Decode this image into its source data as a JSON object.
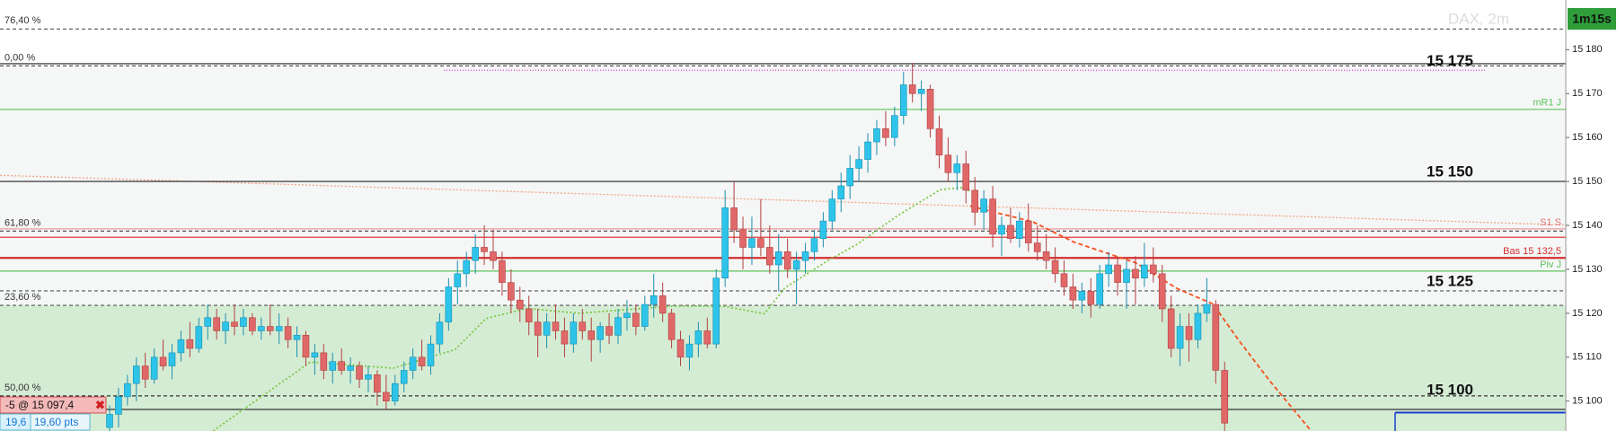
{
  "chart_data": {
    "type": "candlestick",
    "title": "DAX, 2m",
    "timer": "1m15s",
    "ylim": [
      15093.2,
      15191.3
    ],
    "yticks": [
      {
        "value": 15100,
        "label": "15 100"
      },
      {
        "value": 15110,
        "label": "15 110"
      },
      {
        "value": 15120,
        "label": "15 120"
      },
      {
        "value": 15130,
        "label": "15 130"
      },
      {
        "value": 15140,
        "label": "15 140"
      },
      {
        "value": 15150,
        "label": "15 150"
      },
      {
        "value": 15160,
        "label": "15 160"
      },
      {
        "value": 15170,
        "label": "15 170"
      },
      {
        "value": 15180,
        "label": "15 180"
      }
    ],
    "up_color": "#2ec4ea",
    "down_color": "#e06868",
    "zones": [
      {
        "from": 15176.3,
        "to": 15121.8,
        "color": "#f5f6f6"
      },
      {
        "from": 15121.8,
        "to": 15093.2,
        "color": "#d5ecd4"
      }
    ],
    "levels": [
      {
        "price": 15184.7,
        "label": "76,40 %",
        "color": "#555555",
        "style": "dashed",
        "side": "left"
      },
      {
        "price": 15176.3,
        "label": "0,00 %",
        "color": "#555555",
        "style": "dashed",
        "side": "left"
      },
      {
        "price": 15176.8,
        "color": "#222222",
        "style": "solid"
      },
      {
        "price": 15175.3,
        "label": "15 175",
        "color": "#e040e0",
        "style": "segment",
        "side": "big"
      },
      {
        "price": 15166.4,
        "label": "mR1 J",
        "color": "#5cc45c",
        "style": "solid",
        "side": "right"
      },
      {
        "price": 15150,
        "label": "15 150",
        "color": "#222222",
        "style": "solid",
        "side": "big"
      },
      {
        "price": 15139.2,
        "label": "S1 S",
        "color": "#e57373",
        "style": "thin",
        "side": "right"
      },
      {
        "price": 15138.7,
        "label": "61,80 %",
        "color": "#555555",
        "style": "dashed",
        "side": "left"
      },
      {
        "price": 15137.3,
        "color": "#e53935",
        "style": "solid"
      },
      {
        "price": 15132.6,
        "label": "Bas 15 132,5",
        "color": "#d32f2f",
        "style": "thick",
        "side": "right"
      },
      {
        "price": 15129.6,
        "label": "Piv J",
        "color": "#5cc45c",
        "style": "solid",
        "side": "right"
      },
      {
        "price": 15125.1,
        "label": "15 125",
        "color": "#555555",
        "style": "dashed",
        "side": "big"
      },
      {
        "price": 15121.8,
        "label": "23,60 %",
        "color": "#555555",
        "style": "dashed",
        "side": "left"
      },
      {
        "price": 15101.2,
        "label": "50,00 %",
        "color": "#333333",
        "style": "dashed",
        "side": "left"
      },
      {
        "price": 15100.4,
        "label": "15 100",
        "color": "#333333",
        "style": "none",
        "side": "big"
      },
      {
        "price": 15098.1,
        "color": "#333333",
        "style": "solid"
      }
    ],
    "trendline": {
      "color": "#f4a582",
      "values": [
        15151.4,
        15140.1
      ]
    },
    "averages": [
      {
        "color": "#7ac943",
        "style": "dotted",
        "x": [
          11.6,
          22.5,
          31.8,
          38.7,
          42.2,
          46.8,
          52.6,
          63,
          68.8,
          73.4,
          75.7,
          80.3,
          83.8,
          88.4,
          93.1,
          95.4,
          97.1
        ],
        "values": [
          15093.2,
          15108.9,
          15107.5,
          15111.7,
          15118.8,
          15121.1,
          15120,
          15121.6,
          15121.6,
          15119.9,
          15125.8,
          15131.7,
          15135.7,
          15142.3,
          15148.1,
          15148.6,
          15147.4
        ]
      },
      {
        "color": "#f4511e",
        "style": "dashed",
        "x": [
          96.5,
          103.5,
          108.1,
          115,
          119.7,
          123.7,
          126.6,
          130.1,
          134.7
        ],
        "values": [
          15144.4,
          15140.8,
          15136.2,
          15131.5,
          15125.6,
          15122.1,
          15113.8,
          15104.5,
          15093.2
        ]
      }
    ],
    "position": {
      "label": "-5 @ 15 097,4",
      "price": 15097.4,
      "gain": "19,6",
      "points": "19,60 pts"
    },
    "candles": [
      [
        15094,
        15099,
        15093,
        15097
      ],
      [
        15097,
        15103,
        15094,
        15101
      ],
      [
        15101,
        15106,
        15099,
        15104
      ],
      [
        15104,
        15110,
        15100,
        15108
      ],
      [
        15108,
        15111,
        15103,
        15105
      ],
      [
        15105,
        15112,
        15104,
        15110
      ],
      [
        15110,
        15114,
        15107,
        15108
      ],
      [
        15108,
        15113,
        15105,
        15111
      ],
      [
        15111,
        15116,
        15109,
        15114
      ],
      [
        15114,
        15118,
        15110,
        15112
      ],
      [
        15112,
        15119,
        15111,
        15117
      ],
      [
        15117,
        15122,
        15114,
        15119
      ],
      [
        15119,
        15121,
        15114,
        15116
      ],
      [
        15116,
        15120,
        15113,
        15118
      ],
      [
        15118,
        15122,
        15115,
        15117
      ],
      [
        15117,
        15121,
        15115,
        15119
      ],
      [
        15119,
        15120,
        15115,
        15116
      ],
      [
        15116,
        15119,
        15114,
        15117
      ],
      [
        15117,
        15122,
        15115,
        15116
      ],
      [
        15116,
        15120,
        15113,
        15117
      ],
      [
        15117,
        15119,
        15112,
        15114
      ],
      [
        15114,
        15117,
        15110,
        15115
      ],
      [
        15115,
        15116,
        15108,
        15110
      ],
      [
        15110,
        15113,
        15106,
        15111
      ],
      [
        15111,
        15113,
        15105,
        15107
      ],
      [
        15107,
        15111,
        15104,
        15109
      ],
      [
        15109,
        15112,
        15106,
        15107
      ],
      [
        15107,
        15110,
        15104,
        15108
      ],
      [
        15108,
        15109,
        15103,
        15105
      ],
      [
        15105,
        15108,
        15102,
        15106
      ],
      [
        15106,
        15107,
        15099,
        15102
      ],
      [
        15102,
        15106,
        15098,
        15100
      ],
      [
        15100,
        15106,
        15099,
        15104
      ],
      [
        15104,
        15109,
        15102,
        15107
      ],
      [
        15107,
        15112,
        15105,
        15110
      ],
      [
        15110,
        15114,
        15107,
        15108
      ],
      [
        15108,
        15115,
        15106,
        15113
      ],
      [
        15113,
        15120,
        15111,
        15118
      ],
      [
        15118,
        15128,
        15116,
        15126
      ],
      [
        15126,
        15132,
        15122,
        15129
      ],
      [
        15129,
        15134,
        15126,
        15132
      ],
      [
        15132,
        15138,
        15129,
        15135
      ],
      [
        15135,
        15140,
        15131,
        15134
      ],
      [
        15134,
        15139,
        15130,
        15132
      ],
      [
        15132,
        15134,
        15124,
        15127
      ],
      [
        15127,
        15130,
        15120,
        15123
      ],
      [
        15123,
        15126,
        15118,
        15121
      ],
      [
        15121,
        15124,
        15115,
        15118
      ],
      [
        15118,
        15121,
        15110,
        15115
      ],
      [
        15115,
        15120,
        15112,
        15118
      ],
      [
        15118,
        15122,
        15114,
        15116
      ],
      [
        15116,
        15119,
        15110,
        15113
      ],
      [
        15113,
        15120,
        15111,
        15118
      ],
      [
        15118,
        15121,
        15114,
        15116
      ],
      [
        15116,
        15119,
        15109,
        15114
      ],
      [
        15114,
        15118,
        15111,
        15117
      ],
      [
        15117,
        15120,
        15113,
        15115
      ],
      [
        15115,
        15121,
        15113,
        15119
      ],
      [
        15119,
        15123,
        15116,
        15120
      ],
      [
        15120,
        15122,
        15115,
        15117
      ],
      [
        15117,
        15124,
        15116,
        15122
      ],
      [
        15122,
        15129,
        15119,
        15124
      ],
      [
        15124,
        15127,
        15118,
        15120
      ],
      [
        15120,
        15121,
        15112,
        15114
      ],
      [
        15114,
        15116,
        15108,
        15110
      ],
      [
        15110,
        15115,
        15107,
        15113
      ],
      [
        15113,
        15118,
        15110,
        15116
      ],
      [
        15116,
        15119,
        15112,
        15113
      ],
      [
        15113,
        15130,
        15112,
        15128
      ],
      [
        15128,
        15148,
        15126,
        15144
      ],
      [
        15144,
        15150,
        15136,
        15139
      ],
      [
        15139,
        15142,
        15130,
        15135
      ],
      [
        15135,
        15142,
        15131,
        15137
      ],
      [
        15137,
        15146,
        15133,
        15135
      ],
      [
        15135,
        15140,
        15129,
        15131
      ],
      [
        15131,
        15138,
        15125,
        15134
      ],
      [
        15134,
        15137,
        15128,
        15130
      ],
      [
        15130,
        15134,
        15122,
        15132
      ],
      [
        15132,
        15136,
        15129,
        15134
      ],
      [
        15134,
        15139,
        15132,
        15137
      ],
      [
        15137,
        15143,
        15135,
        15141
      ],
      [
        15141,
        15148,
        15139,
        15146
      ],
      [
        15146,
        15152,
        15143,
        15149
      ],
      [
        15149,
        15156,
        15146,
        15153
      ],
      [
        15153,
        15158,
        15150,
        15155
      ],
      [
        15155,
        15161,
        15152,
        15159
      ],
      [
        15159,
        15164,
        15156,
        15162
      ],
      [
        15162,
        15166,
        15158,
        15160
      ],
      [
        15160,
        15167,
        15158,
        15165
      ],
      [
        15165,
        15175,
        15163,
        15172
      ],
      [
        15172,
        15177,
        15168,
        15170
      ],
      [
        15170,
        15173,
        15166,
        15171
      ],
      [
        15171,
        15172,
        15160,
        15162
      ],
      [
        15162,
        15165,
        15153,
        15156
      ],
      [
        15156,
        15160,
        15150,
        15152
      ],
      [
        15152,
        15156,
        15148,
        15154
      ],
      [
        15154,
        15157,
        15145,
        15148
      ],
      [
        15148,
        15151,
        15140,
        15143
      ],
      [
        15143,
        15148,
        15139,
        15146
      ],
      [
        15146,
        15149,
        15135,
        15138
      ],
      [
        15138,
        15142,
        15133,
        15140
      ],
      [
        15140,
        15144,
        15136,
        15137
      ],
      [
        15137,
        15143,
        15135,
        15141
      ],
      [
        15141,
        15145,
        15134,
        15136
      ],
      [
        15136,
        15140,
        15132,
        15134
      ],
      [
        15134,
        15138,
        15130,
        15132
      ],
      [
        15132,
        15135,
        15127,
        15129
      ],
      [
        15129,
        15132,
        15124,
        15126
      ],
      [
        15126,
        15129,
        15121,
        15123
      ],
      [
        15123,
        15127,
        15120,
        15125
      ],
      [
        15125,
        15128,
        15119,
        15122
      ],
      [
        15122,
        15131,
        15121,
        15129
      ],
      [
        15129,
        15134,
        15126,
        15131
      ],
      [
        15131,
        15133,
        15124,
        15127
      ],
      [
        15127,
        15132,
        15121,
        15130
      ],
      [
        15130,
        15133,
        15122,
        15128
      ],
      [
        15128,
        15136,
        15126,
        15131
      ],
      [
        15131,
        15135,
        15127,
        15129
      ],
      [
        15129,
        15131,
        15118,
        15121
      ],
      [
        15121,
        15124,
        15110,
        15112
      ],
      [
        15112,
        15120,
        15108,
        15117
      ],
      [
        15117,
        15120,
        15109,
        15114
      ],
      [
        15114,
        15122,
        15112,
        15120
      ],
      [
        15120,
        15128,
        15118,
        15122
      ],
      [
        15122,
        15123,
        15104,
        15107
      ],
      [
        15107,
        15109,
        15093,
        15095
      ]
    ]
  }
}
